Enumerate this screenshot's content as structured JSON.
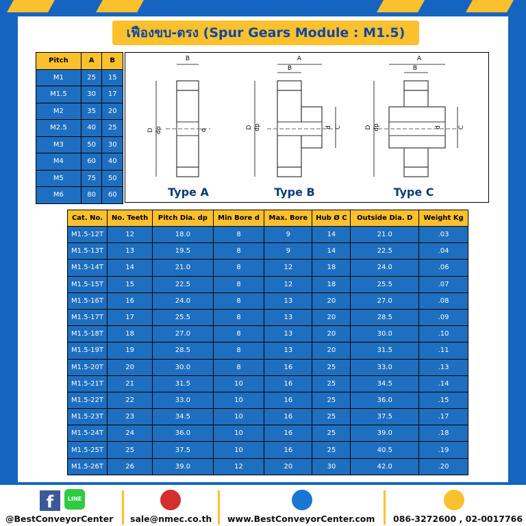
{
  "title": "เฟืองขบ-ตรง (Spur Gears Module : M1.5)",
  "pitch_table": {
    "headers": [
      "Pitch",
      "A",
      "B"
    ],
    "rows": [
      [
        "M1",
        "25",
        "15"
      ],
      [
        "M1.5",
        "30",
        "17"
      ],
      [
        "M2",
        "35",
        "20"
      ],
      [
        "M2.5",
        "40",
        "25"
      ],
      [
        "M3",
        "50",
        "30"
      ],
      [
        "M4",
        "60",
        "40"
      ],
      [
        "M5",
        "75",
        "50"
      ],
      [
        "M6",
        "80",
        "60"
      ]
    ]
  },
  "diagrams": [
    {
      "label": "Type A",
      "dims": [
        "B",
        "D",
        "dp",
        "d"
      ]
    },
    {
      "label": "Type B",
      "dims": [
        "A",
        "B",
        "D",
        "dp",
        "d",
        "C"
      ]
    },
    {
      "label": "Type C",
      "dims": [
        "A",
        "B",
        "D",
        "dp",
        "d",
        "C"
      ]
    }
  ],
  "table": {
    "headers": [
      "Cat. No.",
      "No. Teeth",
      "Pitch Dia. dp",
      "Min Bore d",
      "Max. Bore",
      "Hub Ø C",
      "Outside Dia. D",
      "Weight Kg"
    ],
    "rows": [
      [
        "M1.5-12T",
        "12",
        "18.0",
        "8",
        "9",
        "14",
        "21.0",
        ".03"
      ],
      [
        "M1.5-13T",
        "13",
        "19.5",
        "8",
        "9",
        "14",
        "22.5",
        ".04"
      ],
      [
        "M1.5-14T",
        "14",
        "21.0",
        "8",
        "12",
        "18",
        "24.0",
        ".06"
      ],
      [
        "M1.5-15T",
        "15",
        "22.5",
        "8",
        "12",
        "18",
        "25.5",
        ".07"
      ],
      [
        "M1.5-16T",
        "16",
        "24.0",
        "8",
        "13",
        "20",
        "27.0",
        ".08"
      ],
      [
        "M1.5-17T",
        "17",
        "25.5",
        "8",
        "13",
        "20",
        "28.5",
        ".09"
      ],
      [
        "M1.5-18T",
        "18",
        "27.0",
        "8",
        "13",
        "20",
        "30.0",
        ".10"
      ],
      [
        "M1.5-19T",
        "19",
        "28.5",
        "8",
        "13",
        "20",
        "31.5",
        ".11"
      ],
      [
        "M1.5-20T",
        "20",
        "30.0",
        "8",
        "16",
        "25",
        "33.0",
        ".13"
      ],
      [
        "M1.5-21T",
        "21",
        "31.5",
        "10",
        "16",
        "25",
        "34.5",
        ".14"
      ],
      [
        "M1.5-22T",
        "22",
        "33.0",
        "10",
        "16",
        "25",
        "36.0",
        ".15"
      ],
      [
        "M1.5-23T",
        "23",
        "34.5",
        "10",
        "16",
        "25",
        "37.5",
        ".17"
      ],
      [
        "M1.5-24T",
        "24",
        "36.0",
        "10",
        "16",
        "25",
        "39.0",
        ".18"
      ],
      [
        "M1.5-25T",
        "25",
        "37.5",
        "10",
        "16",
        "25",
        "40.5",
        ".19"
      ],
      [
        "M1.5-26T",
        "26",
        "39.0",
        "12",
        "20",
        "30",
        "42.0",
        ".20"
      ]
    ]
  },
  "footer": {
    "line_icon": "LINE",
    "items": [
      "@BestConveyorCenter",
      "sale@nmec.co.th",
      "www.BestConveyorCenter.com",
      "086-3272600 , 02-0017766"
    ]
  }
}
